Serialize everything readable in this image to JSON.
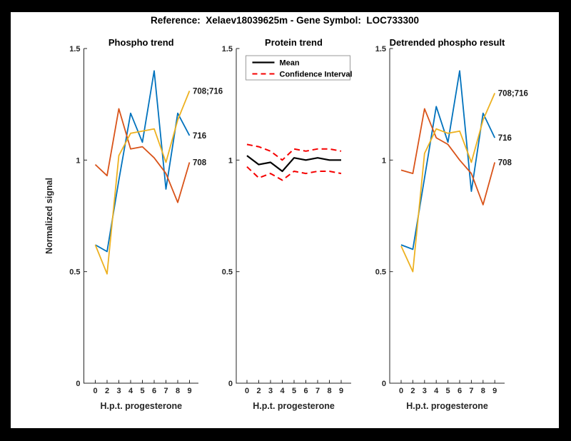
{
  "header": {
    "title": "Reference:  Xelaev18039625m - Gene Symbol:  LOC733300"
  },
  "colors": {
    "blue": "#0072BD",
    "orange": "#D95319",
    "yellow": "#EDB120",
    "red": "#F50000",
    "black": "#000000",
    "axis": "#262626",
    "figure_border": "#000000",
    "canvas_bg": "#ffffff",
    "legend_border": "#9a9a9a"
  },
  "chart_data": [
    {
      "type": "line",
      "title": "Phospho trend",
      "xlabel": "H.p.t. progesterone",
      "ylabel": "Normalized signal",
      "x_ticklabels": [
        "0",
        "2",
        "3",
        "4",
        "5",
        "6",
        "7",
        "8",
        "9"
      ],
      "yticks": [
        "0",
        "0.5",
        "1",
        "1.5"
      ],
      "ylim": [
        0,
        1.5
      ],
      "grid": false,
      "series": [
        {
          "name": "716",
          "color": "blue",
          "dash": false,
          "end_label": "716",
          "values": [
            0.62,
            0.59,
            0.91,
            1.21,
            1.08,
            1.4,
            0.87,
            1.21,
            1.11
          ]
        },
        {
          "name": "708",
          "color": "orange",
          "dash": false,
          "end_label": "708",
          "values": [
            0.98,
            0.93,
            1.23,
            1.05,
            1.06,
            1.01,
            0.94,
            0.81,
            0.99
          ]
        },
        {
          "name": "708;716",
          "color": "yellow",
          "dash": false,
          "end_label": "708;716",
          "values": [
            0.62,
            0.49,
            1.02,
            1.12,
            1.13,
            1.14,
            0.99,
            1.18,
            1.31
          ]
        }
      ]
    },
    {
      "type": "line",
      "title": "Protein trend",
      "xlabel": "H.p.t. progesterone",
      "ylabel": "",
      "x_ticklabels": [
        "0",
        "2",
        "3",
        "4",
        "5",
        "6",
        "7",
        "8",
        "9"
      ],
      "yticks": [
        "0",
        "0.5",
        "1",
        "1.5"
      ],
      "ylim": [
        0,
        1.5
      ],
      "grid": false,
      "legend": {
        "position": "northwest",
        "entries": [
          {
            "label": "Mean",
            "color": "black",
            "dash": false
          },
          {
            "label": "Confidence Interval",
            "color": "red",
            "dash": true
          }
        ]
      },
      "series": [
        {
          "name": "Mean",
          "color": "black",
          "dash": false,
          "values": [
            1.02,
            0.98,
            0.99,
            0.95,
            1.01,
            1.0,
            1.01,
            1.0,
            1.0
          ]
        },
        {
          "name": "Confidence Interval upper",
          "color": "red",
          "dash": true,
          "values": [
            1.07,
            1.06,
            1.04,
            1.0,
            1.05,
            1.04,
            1.05,
            1.05,
            1.04
          ]
        },
        {
          "name": "Confidence Interval lower",
          "color": "red",
          "dash": true,
          "values": [
            0.97,
            0.92,
            0.94,
            0.91,
            0.95,
            0.94,
            0.95,
            0.95,
            0.94
          ]
        }
      ]
    },
    {
      "type": "line",
      "title": "Detrended phospho result",
      "xlabel": "H.p.t. progesterone",
      "ylabel": "",
      "x_ticklabels": [
        "0",
        "2",
        "3",
        "4",
        "5",
        "6",
        "7",
        "8",
        "9"
      ],
      "yticks": [
        "0",
        "0.5",
        "1",
        "1.5"
      ],
      "ylim": [
        0,
        1.5
      ],
      "grid": false,
      "series": [
        {
          "name": "716",
          "color": "blue",
          "dash": false,
          "end_label": "716",
          "values": [
            0.62,
            0.6,
            0.92,
            1.24,
            1.08,
            1.4,
            0.86,
            1.21,
            1.1
          ]
        },
        {
          "name": "708",
          "color": "orange",
          "dash": false,
          "end_label": "708",
          "values": [
            0.955,
            0.94,
            1.23,
            1.1,
            1.07,
            1.0,
            0.94,
            0.8,
            0.99
          ]
        },
        {
          "name": "708;716",
          "color": "yellow",
          "dash": false,
          "end_label": "708;716",
          "values": [
            0.615,
            0.5,
            1.03,
            1.14,
            1.12,
            1.13,
            0.99,
            1.18,
            1.3
          ]
        }
      ]
    }
  ]
}
